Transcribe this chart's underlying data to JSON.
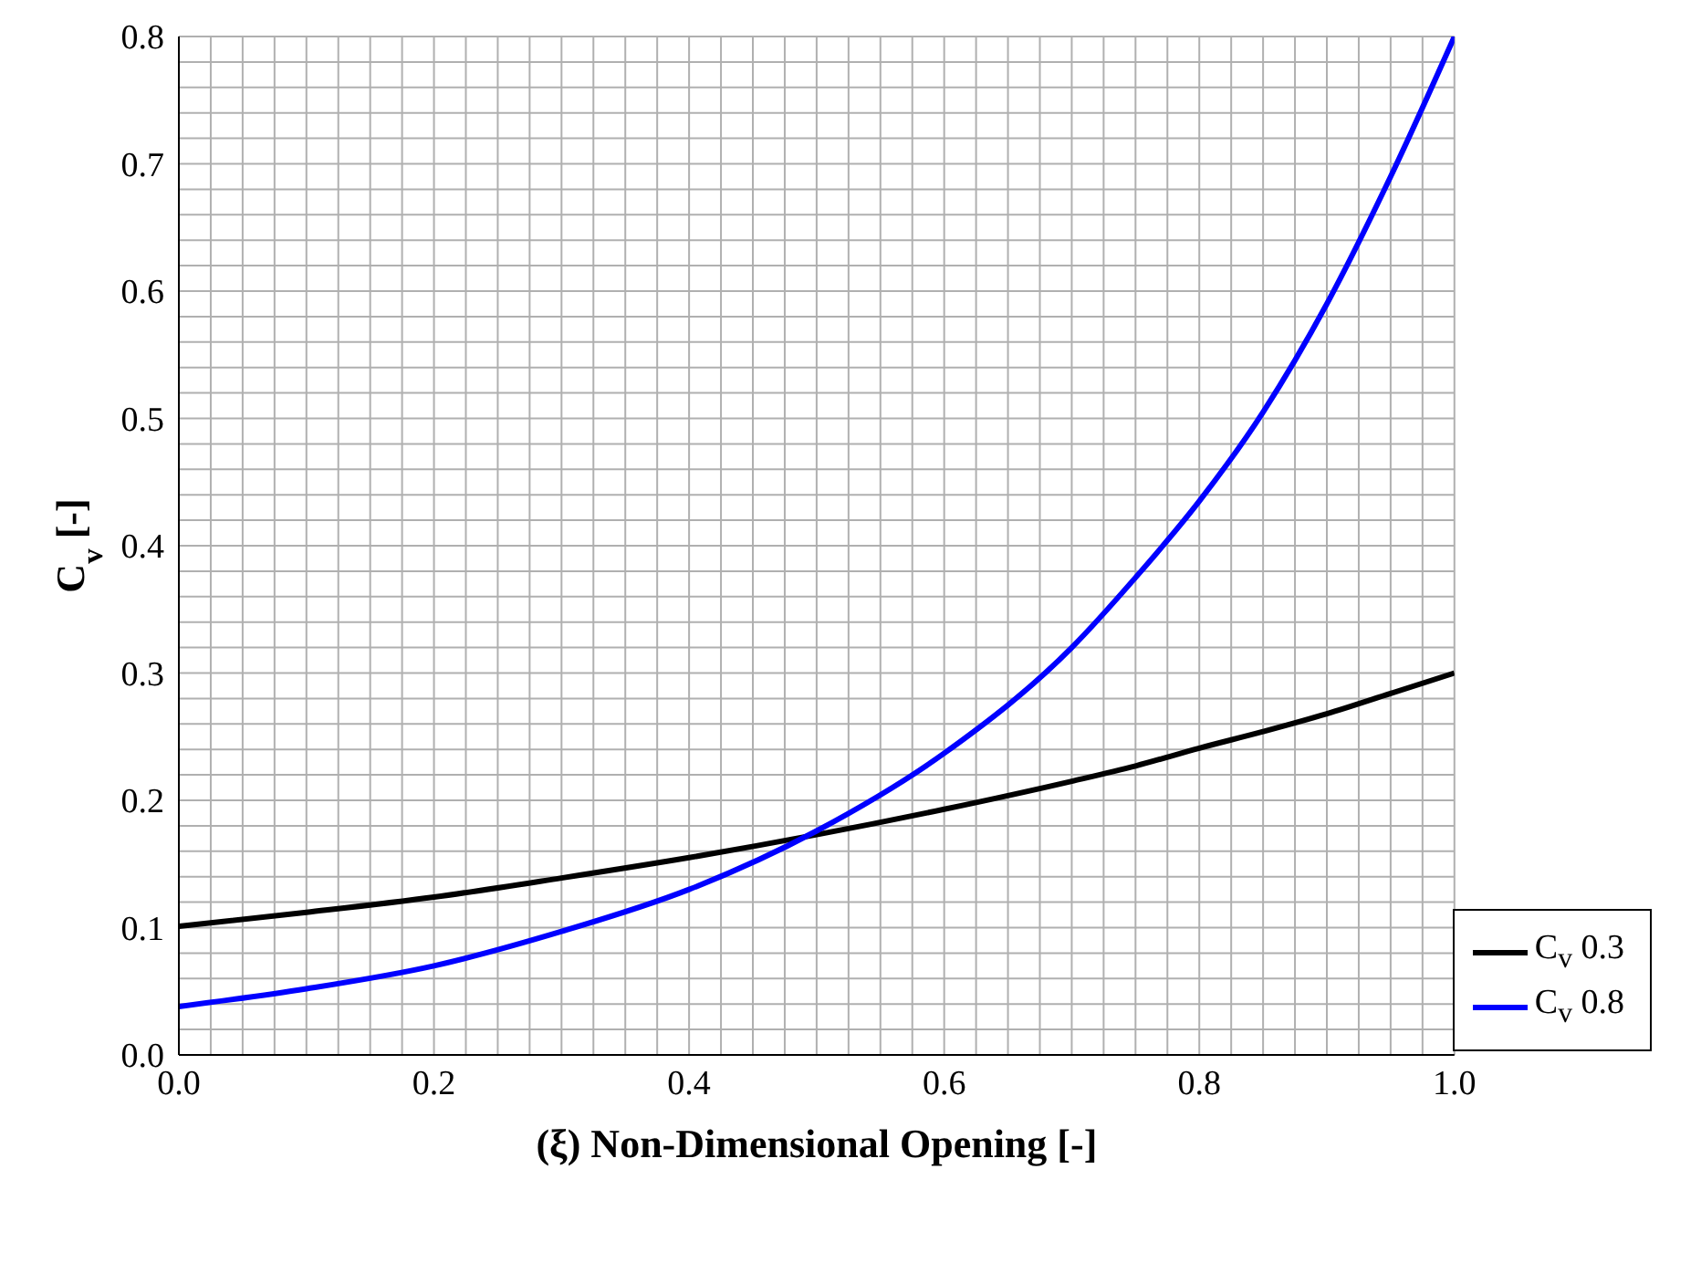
{
  "chart_data": {
    "type": "line",
    "xlabel": "(ξ) Non-Dimensional Opening [-]",
    "ylabel": "C$_{v}$ [-]",
    "x": [
      0,
      0.1,
      0.2,
      0.3,
      0.4,
      0.5,
      0.6,
      0.7,
      0.75,
      0.8,
      0.85,
      0.9,
      0.95,
      1.0
    ],
    "series": [
      {
        "name": "C$_{v}$  0.3",
        "color": "#000000",
        "values": [
          0.101,
          0.112,
          0.124,
          0.139,
          0.155,
          0.173,
          0.193,
          0.215,
          0.227,
          0.241,
          0.254,
          0.268,
          0.284,
          0.3
        ]
      },
      {
        "name": "C$_{v}$  0.8",
        "color": "#0000ff",
        "values": [
          0.038,
          0.052,
          0.07,
          0.097,
          0.13,
          0.176,
          0.237,
          0.32,
          0.375,
          0.435,
          0.505,
          0.59,
          0.69,
          0.8
        ]
      }
    ],
    "xlim": [
      0,
      1
    ],
    "ylim": [
      0,
      0.8
    ],
    "xticks": [
      "0.0",
      {
        "value": 0.025,
        "label": null
      },
      {
        "value": 0.05,
        "label": null
      },
      {
        "value": 0.075,
        "label": null
      },
      {
        "value": 0.1,
        "label": null
      },
      {
        "value": 0.125,
        "label": null
      },
      {
        "value": 0.15,
        "label": null
      },
      {
        "value": 0.175,
        "label": null
      },
      {
        "value": 0.2,
        "label": "0.2"
      },
      {
        "value": 0.225,
        "label": null
      },
      {
        "value": 0.25,
        "label": null
      },
      {
        "value": 0.275,
        "label": null
      },
      {
        "value": 0.3,
        "label": null
      },
      {
        "value": 0.325,
        "label": null
      },
      {
        "value": 0.35,
        "label": null
      },
      {
        "value": 0.375,
        "label": null
      },
      {
        "value": 0.4,
        "label": "0.4"
      },
      {
        "value": 0.425,
        "label": null
      },
      {
        "value": 0.45,
        "label": null
      },
      {
        "value": 0.475,
        "label": null
      },
      {
        "value": 0.5,
        "label": null
      },
      {
        "value": 0.525,
        "label": null
      },
      {
        "value": 0.55,
        "label": null
      },
      {
        "value": 0.575,
        "label": null
      },
      {
        "value": 0.6,
        "label": "0.6"
      },
      {
        "value": 0.625,
        "label": null
      },
      {
        "value": 0.65,
        "label": null
      },
      {
        "value": 0.675,
        "label": null
      },
      {
        "value": 0.7,
        "label": null
      },
      {
        "value": 0.725,
        "label": null
      },
      {
        "value": 0.75,
        "label": null
      },
      {
        "value": 0.775,
        "label": null
      },
      {
        "value": 0.8,
        "label": "0.8"
      },
      {
        "value": 0.825,
        "label": null
      },
      {
        "value": 0.85,
        "label": null
      },
      {
        "value": 0.875,
        "label": null
      },
      {
        "value": 0.9,
        "label": null
      },
      {
        "value": 0.925,
        "label": null
      },
      {
        "value": 0.95,
        "label": null
      },
      {
        "value": 0.975,
        "label": null
      },
      {
        "value": 1,
        "label": "1.0"
      }
    ],
    "yticks": [
      {
        "value": 0,
        "label": "0.0"
      },
      {
        "value": 0.02,
        "label": null
      },
      {
        "value": 0.04,
        "label": null
      },
      {
        "value": 0.06,
        "label": null
      },
      {
        "value": 0.08,
        "label": null
      },
      {
        "value": 0.1,
        "label": "0.1"
      },
      {
        "value": 0.12,
        "label": null
      },
      {
        "value": 0.14,
        "label": null
      },
      {
        "value": 0.16,
        "label": null
      },
      {
        "value": 0.18,
        "label": null
      },
      {
        "value": 0.2,
        "label": "0.2"
      },
      {
        "value": 0.22,
        "label": null
      },
      {
        "value": 0.24,
        "label": null
      },
      {
        "value": 0.26,
        "label": null
      },
      {
        "value": 0.28,
        "label": null
      },
      {
        "value": 0.3,
        "label": "0.3"
      },
      {
        "value": 0.32,
        "label": null
      },
      {
        "value": 0.34,
        "label": null
      },
      {
        "value": 0.36,
        "label": null
      },
      {
        "value": 0.38,
        "label": null
      },
      {
        "value": 0.4,
        "label": "0.4"
      },
      {
        "value": 0.42,
        "label": null
      },
      {
        "value": 0.44,
        "label": null
      },
      {
        "value": 0.46,
        "label": null
      },
      {
        "value": 0.48,
        "label": null
      },
      {
        "value": 0.5,
        "label": "0.5"
      },
      {
        "value": 0.52,
        "label": null
      },
      {
        "value": 0.54,
        "label": null
      },
      {
        "value": 0.56,
        "label": null
      },
      {
        "value": 0.58,
        "label": null
      },
      {
        "value": 0.6,
        "label": "0.6"
      },
      {
        "value": 0.62,
        "label": null
      },
      {
        "value": 0.64,
        "label": null
      },
      {
        "value": 0.66,
        "label": null
      },
      {
        "value": 0.68,
        "label": null
      },
      {
        "value": 0.7,
        "label": "0.7"
      },
      {
        "value": 0.72,
        "label": null
      },
      {
        "value": 0.74,
        "label": null
      },
      {
        "value": 0.76,
        "label": null
      },
      {
        "value": 0.78,
        "label": null
      },
      {
        "value": 0.8,
        "label": "0.8"
      }
    ],
    "grid": true,
    "legend": "bottom right",
    "marker": "none",
    "line_style": "solid"
  }
}
